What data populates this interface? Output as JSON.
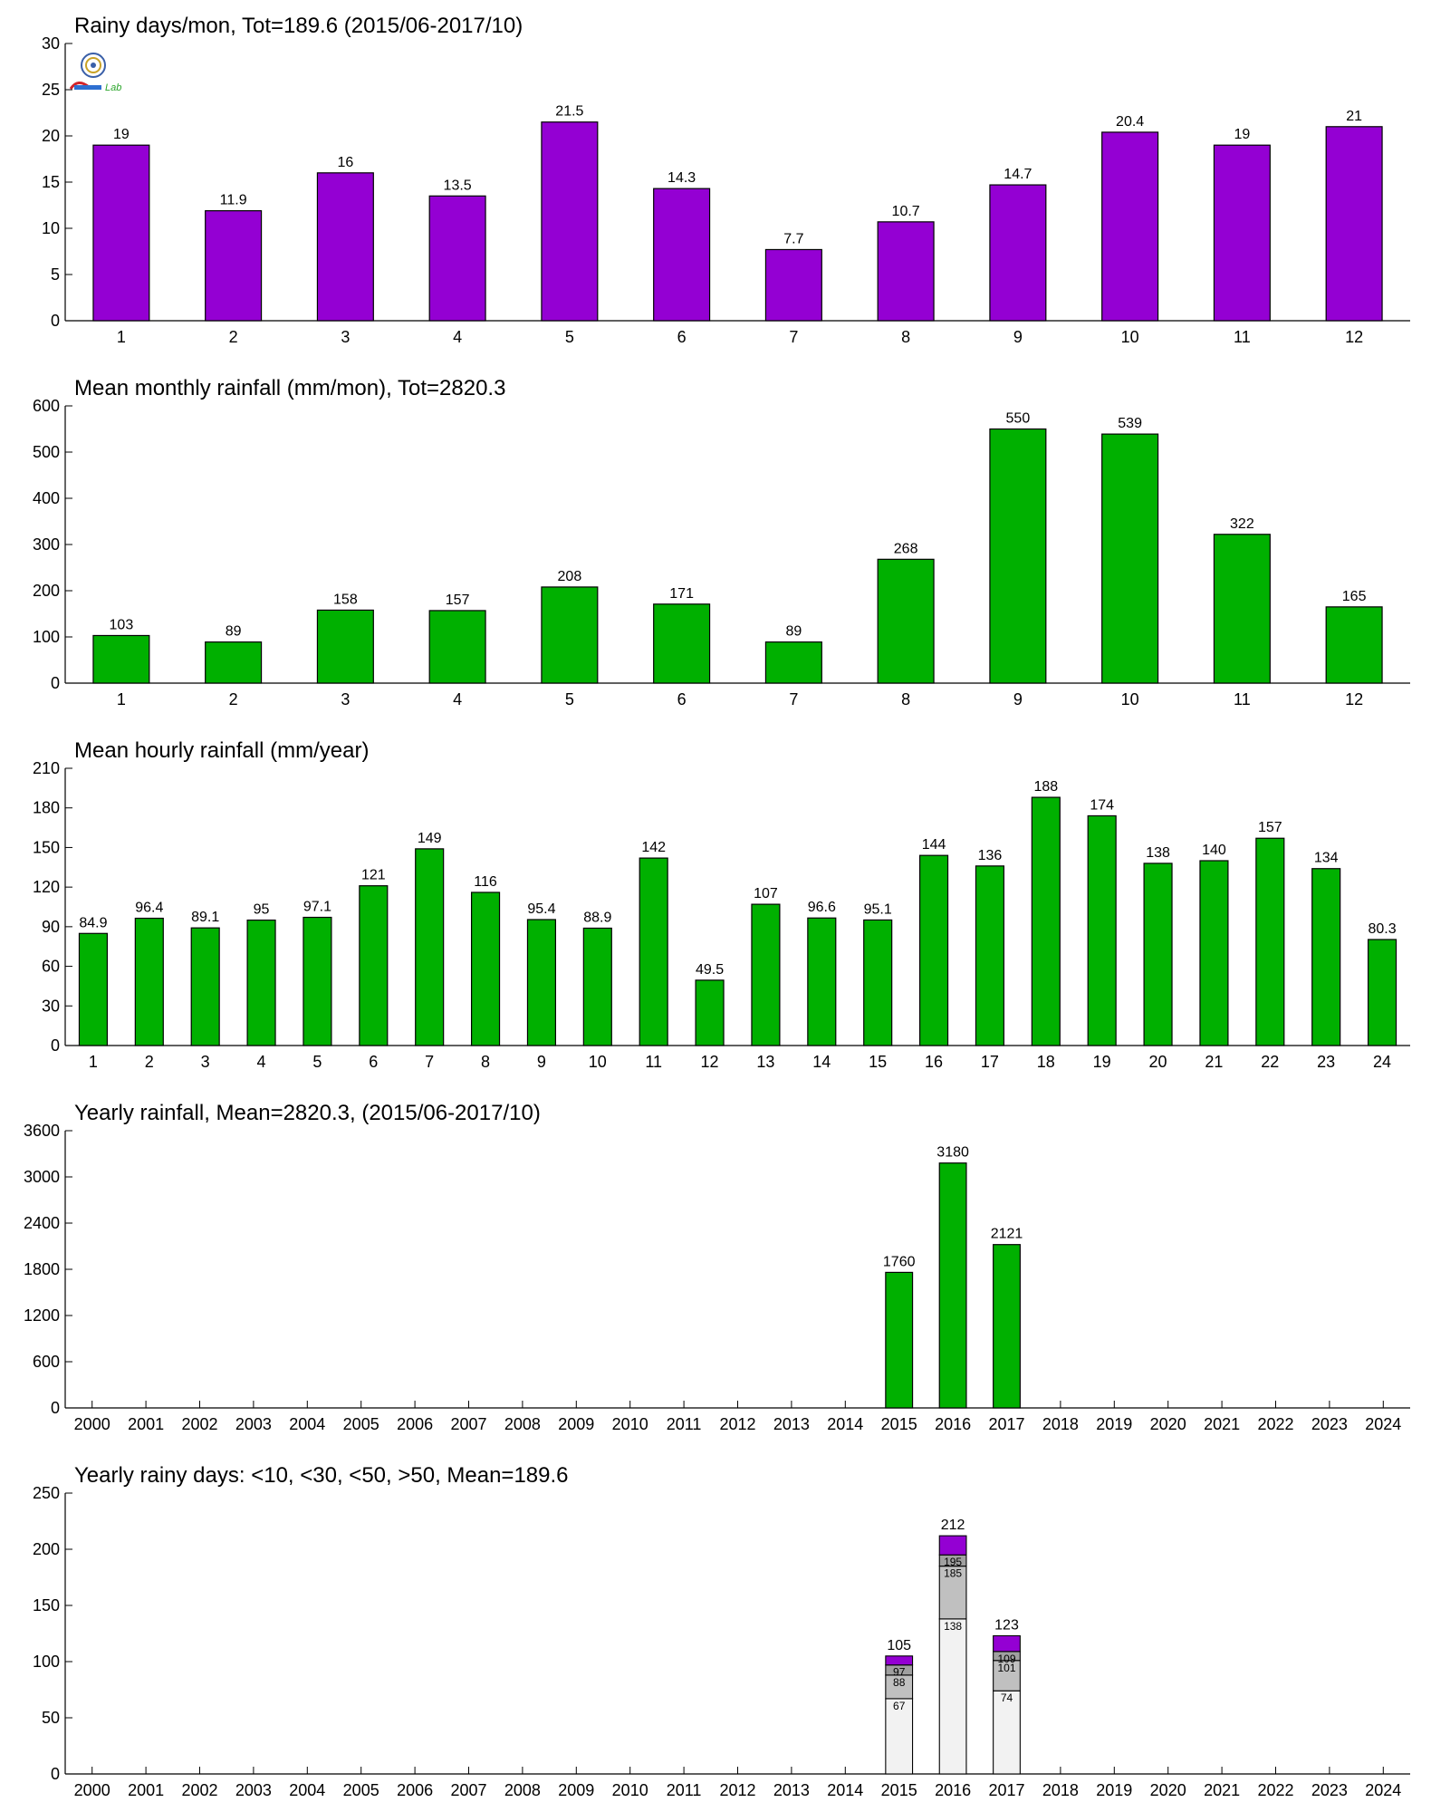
{
  "colors": {
    "purple": "#9400d3",
    "green": "#00b000",
    "light_gray": "#f2f2f2",
    "mid_gray": "#c0c0c0",
    "dark_gray": "#a0a0a0",
    "axis": "#000000"
  },
  "logo": {
    "icon": "lab-logo-icon",
    "text": "Lab"
  },
  "chart_data": [
    {
      "type": "bar",
      "title": "Rainy days/mon, Tot=189.6 (2015/06-2017/10)",
      "xlabel": "",
      "ylabel": "",
      "categories": [
        "1",
        "2",
        "3",
        "4",
        "5",
        "6",
        "7",
        "8",
        "9",
        "10",
        "11",
        "12"
      ],
      "values": [
        19,
        11.9,
        16,
        13.5,
        21.5,
        14.3,
        7.7,
        10.7,
        14.7,
        20.4,
        19,
        21
      ],
      "value_labels": [
        "19",
        "11.9",
        "16",
        "13.5",
        "21.5",
        "14.3",
        "7.7",
        "10.7",
        "14.7",
        "20.4",
        "19",
        "21"
      ],
      "ylim": [
        0,
        30
      ],
      "yticks": [
        0,
        5,
        10,
        15,
        20,
        25,
        30
      ],
      "color": "#9400d3",
      "grid": false
    },
    {
      "type": "bar",
      "title": "Mean monthly rainfall (mm/mon), Tot=2820.3",
      "xlabel": "",
      "ylabel": "",
      "categories": [
        "1",
        "2",
        "3",
        "4",
        "5",
        "6",
        "7",
        "8",
        "9",
        "10",
        "11",
        "12"
      ],
      "values": [
        103,
        89,
        158,
        157,
        208,
        171,
        89,
        268,
        550,
        539,
        322,
        165
      ],
      "value_labels": [
        "103",
        "89",
        "158",
        "157",
        "208",
        "171",
        "89",
        "268",
        "550",
        "539",
        "322",
        "165"
      ],
      "ylim": [
        0,
        600
      ],
      "yticks": [
        0,
        100,
        200,
        300,
        400,
        500,
        600
      ],
      "color": "#00b000",
      "grid": false
    },
    {
      "type": "bar",
      "title": "Mean hourly rainfall (mm/year)",
      "xlabel": "",
      "ylabel": "",
      "categories": [
        "1",
        "2",
        "3",
        "4",
        "5",
        "6",
        "7",
        "8",
        "9",
        "10",
        "11",
        "12",
        "13",
        "14",
        "15",
        "16",
        "17",
        "18",
        "19",
        "20",
        "21",
        "22",
        "23",
        "24"
      ],
      "values": [
        84.9,
        96.4,
        89.1,
        95,
        97.1,
        121,
        149,
        116,
        95.4,
        88.9,
        142,
        49.5,
        107,
        96.6,
        95.1,
        144,
        136,
        188,
        174,
        138,
        140,
        157,
        134,
        80.3
      ],
      "value_labels": [
        "84.9",
        "96.4",
        "89.1",
        "95",
        "97.1",
        "121",
        "149",
        "116",
        "95.4",
        "88.9",
        "142",
        "49.5",
        "107",
        "96.6",
        "95.1",
        "144",
        "136",
        "188",
        "174",
        "138",
        "140",
        "157",
        "134",
        "80.3"
      ],
      "ylim": [
        0,
        210
      ],
      "yticks": [
        0,
        30,
        60,
        90,
        120,
        150,
        180,
        210
      ],
      "color": "#00b000",
      "grid": false
    },
    {
      "type": "bar",
      "title": "Yearly rainfall, Mean=2820.3, (2015/06-2017/10)",
      "xlabel": "",
      "ylabel": "",
      "categories": [
        "2000",
        "2001",
        "2002",
        "2003",
        "2004",
        "2005",
        "2006",
        "2007",
        "2008",
        "2009",
        "2010",
        "2011",
        "2012",
        "2013",
        "2014",
        "2015",
        "2016",
        "2017",
        "2018",
        "2019",
        "2020",
        "2021",
        "2022",
        "2023",
        "2024"
      ],
      "values": [
        null,
        null,
        null,
        null,
        null,
        null,
        null,
        null,
        null,
        null,
        null,
        null,
        null,
        null,
        null,
        1760,
        3180,
        2121,
        null,
        null,
        null,
        null,
        null,
        null,
        null
      ],
      "value_labels": [
        "",
        "",
        "",
        "",
        "",
        "",
        "",
        "",
        "",
        "",
        "",
        "",
        "",
        "",
        "",
        "1760",
        "3180",
        "2121",
        "",
        "",
        "",
        "",
        "",
        "",
        ""
      ],
      "ylim": [
        0,
        3600
      ],
      "yticks": [
        0,
        600,
        1200,
        1800,
        2400,
        3000,
        3600
      ],
      "color": "#00b000",
      "grid": false
    },
    {
      "type": "bar",
      "stacked": true,
      "title": "Yearly rainy days: <10, <30, <50, >50, Mean=189.6",
      "xlabel": "",
      "ylabel": "",
      "categories": [
        "2000",
        "2001",
        "2002",
        "2003",
        "2004",
        "2005",
        "2006",
        "2007",
        "2008",
        "2009",
        "2010",
        "2011",
        "2012",
        "2013",
        "2014",
        "2015",
        "2016",
        "2017",
        "2018",
        "2019",
        "2020",
        "2021",
        "2022",
        "2023",
        "2024"
      ],
      "stacks": [
        {
          "year": "2015",
          "cumulative": [
            67,
            88,
            97,
            105
          ],
          "labels": [
            "67",
            "88",
            "97",
            "105"
          ]
        },
        {
          "year": "2016",
          "cumulative": [
            138,
            185,
            195,
            212
          ],
          "labels": [
            "138",
            "185",
            "195",
            "212"
          ]
        },
        {
          "year": "2017",
          "cumulative": [
            74,
            101,
            109,
            123
          ],
          "labels": [
            "74",
            "101",
            "109",
            "123"
          ]
        }
      ],
      "segment_colors": [
        "#f2f2f2",
        "#c0c0c0",
        "#a0a0a0",
        "#9400d3"
      ],
      "ylim": [
        0,
        250
      ],
      "yticks": [
        0,
        50,
        100,
        150,
        200,
        250
      ],
      "grid": false
    }
  ]
}
